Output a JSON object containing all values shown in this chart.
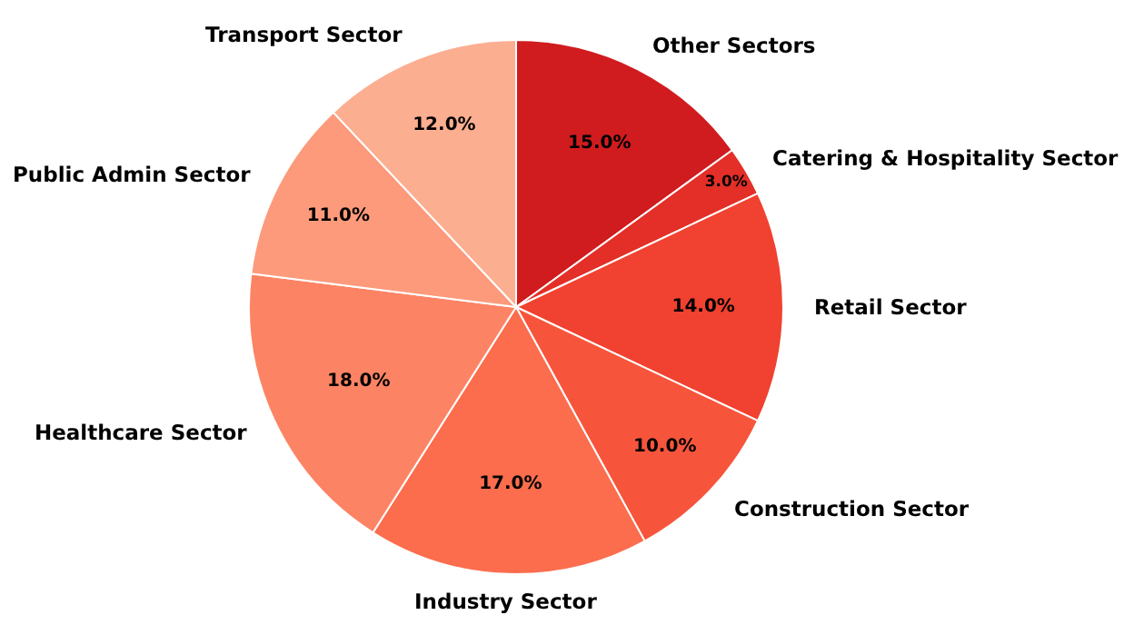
{
  "chart_data": {
    "type": "pie",
    "categories": [
      "Other Sectors",
      "Catering & Hospitality Sector",
      "Retail Sector",
      "Construction Sector",
      "Industry Sector",
      "Healthcare Sector",
      "Public Admin Sector",
      "Transport Sector"
    ],
    "values": [
      15,
      3,
      14,
      10,
      17,
      18,
      11,
      12
    ],
    "value_labels": [
      "15.0%",
      "3.0%",
      "14.0%",
      "10.0%",
      "17.0%",
      "18.0%",
      "11.0%",
      "12.0%"
    ],
    "colors": [
      "#d01c1f",
      "#e32f27",
      "#f14130",
      "#f6553c",
      "#fb6d4d",
      "#fc8464",
      "#fc9a7b",
      "#fcae91"
    ]
  }
}
